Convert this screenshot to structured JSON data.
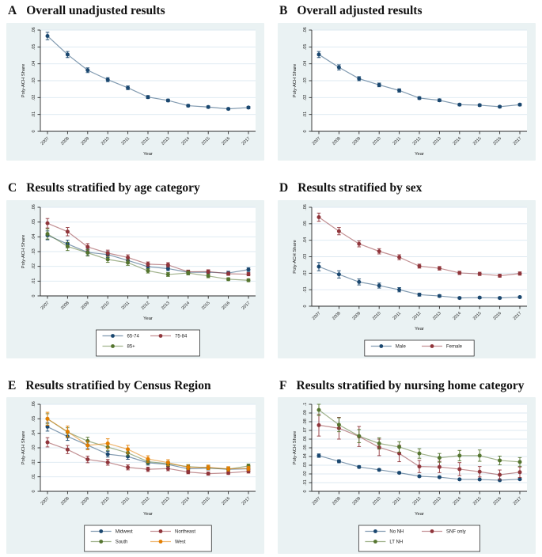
{
  "figure": {
    "xlabel": "Year",
    "ylabel": "Poly-ACH Share",
    "years": [
      2007,
      2008,
      2009,
      2010,
      2011,
      2012,
      2013,
      2014,
      2015,
      2016,
      2017
    ]
  },
  "colors": {
    "navy": "#1A476F",
    "maroon": "#90353B",
    "forest": "#55752F",
    "orange": "#E37E00",
    "plot_bg": "#ffffff",
    "region_bg": "#eaf2f3",
    "gridline": "#dce8f1",
    "axis": "#2b2b2b",
    "text": "#1a1a1a"
  },
  "panels": [
    {
      "letter": "A",
      "title": "Overall unadjusted results",
      "chart_data": {
        "type": "line",
        "x": [
          2007,
          2008,
          2009,
          2010,
          2011,
          2012,
          2013,
          2014,
          2015,
          2016,
          2017
        ],
        "xlabel": "Year",
        "ylabel": "Poly-ACH Share",
        "ylim": [
          0,
          0.06
        ],
        "yticks": [
          0,
          0.01,
          0.02,
          0.03,
          0.04,
          0.05,
          0.06
        ],
        "grid": true,
        "legend": false,
        "series": [
          {
            "name": "Overall unadjusted",
            "color": "navy",
            "values": [
              0.0565,
              0.0455,
              0.0362,
              0.0306,
              0.0258,
              0.0203,
              0.0183,
              0.0152,
              0.0144,
              0.0133,
              0.0141
            ],
            "err": [
              0.0022,
              0.0018,
              0.0014,
              0.0012,
              0.0011,
              0.0009,
              0.0008,
              0.0007,
              0.0007,
              0.0006,
              0.0007
            ]
          }
        ]
      }
    },
    {
      "letter": "B",
      "title": "Overall adjusted results",
      "chart_data": {
        "type": "line",
        "x": [
          2007,
          2008,
          2009,
          2010,
          2011,
          2012,
          2013,
          2014,
          2015,
          2016,
          2017
        ],
        "xlabel": "Year",
        "ylabel": "Poly-ACH Share",
        "ylim": [
          0,
          0.06
        ],
        "yticks": [
          0,
          0.01,
          0.02,
          0.03,
          0.04,
          0.05,
          0.06
        ],
        "grid": true,
        "legend": false,
        "series": [
          {
            "name": "Overall adjusted",
            "color": "navy",
            "values": [
              0.0455,
              0.0379,
              0.0312,
              0.0275,
              0.0242,
              0.0197,
              0.0184,
              0.0158,
              0.0155,
              0.0146,
              0.0158
            ],
            "err": [
              0.0018,
              0.0015,
              0.0012,
              0.0011,
              0.001,
              0.0008,
              0.0008,
              0.0007,
              0.0007,
              0.0006,
              0.0007
            ]
          }
        ]
      }
    },
    {
      "letter": "C",
      "title": "Results stratified by age category",
      "chart_data": {
        "type": "line",
        "x": [
          2007,
          2008,
          2009,
          2010,
          2011,
          2012,
          2013,
          2014,
          2015,
          2016,
          2017
        ],
        "xlabel": "Year",
        "ylabel": "Poly-ACH Share",
        "ylim": [
          0,
          0.06
        ],
        "yticks": [
          0,
          0.01,
          0.02,
          0.03,
          0.04,
          0.05,
          0.06
        ],
        "grid": true,
        "legend": true,
        "series": [
          {
            "name": "65-74",
            "color": "navy",
            "values": [
              0.041,
              0.0352,
              0.0295,
              0.028,
              0.024,
              0.0198,
              0.0185,
              0.016,
              0.016,
              0.0155,
              0.0178
            ],
            "err": [
              0.003,
              0.0026,
              0.0022,
              0.002,
              0.0018,
              0.0015,
              0.0014,
              0.0012,
              0.0012,
              0.0012,
              0.0013
            ]
          },
          {
            "name": "75-84",
            "color": "maroon",
            "values": [
              0.0492,
              0.0435,
              0.0332,
              0.029,
              0.026,
              0.0215,
              0.021,
              0.0163,
              0.0165,
              0.015,
              0.0147
            ],
            "err": [
              0.0032,
              0.0028,
              0.0022,
              0.002,
              0.0018,
              0.0015,
              0.0015,
              0.0012,
              0.0012,
              0.0011,
              0.0011
            ]
          },
          {
            "name": "85+",
            "color": "forest",
            "values": [
              0.042,
              0.0335,
              0.0292,
              0.0247,
              0.0225,
              0.017,
              0.0145,
              0.0155,
              0.0135,
              0.0113,
              0.0106
            ],
            "err": [
              0.0035,
              0.0028,
              0.0022,
              0.002,
              0.0018,
              0.0015,
              0.0013,
              0.0013,
              0.0012,
              0.001,
              0.001
            ]
          }
        ]
      }
    },
    {
      "letter": "D",
      "title": "Results stratified by sex",
      "chart_data": {
        "type": "line",
        "x": [
          2007,
          2008,
          2009,
          2010,
          2011,
          2012,
          2013,
          2014,
          2015,
          2016,
          2017
        ],
        "xlabel": "Year",
        "ylabel": "Poly-ACH Share",
        "ylim": [
          0,
          0.06
        ],
        "yticks": [
          0,
          0.01,
          0.02,
          0.03,
          0.04,
          0.05,
          0.06
        ],
        "grid": true,
        "legend": true,
        "series": [
          {
            "name": "Male",
            "color": "navy",
            "values": [
              0.024,
              0.0193,
              0.0147,
              0.0125,
              0.01,
              0.007,
              0.0062,
              0.005,
              0.0052,
              0.005,
              0.0055
            ],
            "err": [
              0.0025,
              0.0022,
              0.0018,
              0.0015,
              0.0013,
              0.0009,
              0.0008,
              0.0006,
              0.0006,
              0.0006,
              0.0006
            ]
          },
          {
            "name": "Female",
            "color": "maroon",
            "values": [
              0.054,
              0.0455,
              0.0378,
              0.0333,
              0.0297,
              0.0243,
              0.023,
              0.0202,
              0.0196,
              0.0185,
              0.0198
            ],
            "err": [
              0.0025,
              0.0022,
              0.0018,
              0.0016,
              0.0015,
              0.0012,
              0.0011,
              0.001,
              0.001,
              0.0009,
              0.001
            ]
          }
        ]
      }
    },
    {
      "letter": "E",
      "title": "Results stratified by Census Region",
      "chart_data": {
        "type": "line",
        "x": [
          2007,
          2008,
          2009,
          2010,
          2011,
          2012,
          2013,
          2014,
          2015,
          2016,
          2017
        ],
        "xlabel": "Year",
        "ylabel": "Poly-ACH Share",
        "ylim": [
          0,
          0.06
        ],
        "yticks": [
          0,
          0.01,
          0.02,
          0.03,
          0.04,
          0.05,
          0.06
        ],
        "grid": true,
        "legend": true,
        "series": [
          {
            "name": "Midwest",
            "color": "navy",
            "values": [
              0.0445,
              0.0378,
              0.0318,
              0.0256,
              0.024,
              0.0197,
              0.0185,
              0.0155,
              0.016,
              0.0152,
              0.0155
            ],
            "err": [
              0.003,
              0.0027,
              0.0024,
              0.002,
              0.0019,
              0.0016,
              0.0015,
              0.0013,
              0.0013,
              0.0012,
              0.0012
            ]
          },
          {
            "name": "Northeast",
            "color": "maroon",
            "values": [
              0.0338,
              0.0288,
              0.022,
              0.02,
              0.0165,
              0.0152,
              0.0157,
              0.0133,
              0.0122,
              0.0127,
              0.0138
            ],
            "err": [
              0.0032,
              0.0028,
              0.0023,
              0.002,
              0.0017,
              0.0015,
              0.0015,
              0.0012,
              0.0011,
              0.0011,
              0.0012
            ]
          },
          {
            "name": "South",
            "color": "forest",
            "values": [
              0.05,
              0.0408,
              0.0347,
              0.0305,
              0.0265,
              0.0205,
              0.019,
              0.017,
              0.0163,
              0.0153,
              0.0175
            ],
            "err": [
              0.0035,
              0.003,
              0.0026,
              0.0023,
              0.002,
              0.0017,
              0.0016,
              0.0014,
              0.0013,
              0.0012,
              0.0013
            ]
          },
          {
            "name": "West",
            "color": "orange",
            "values": [
              0.05,
              0.0412,
              0.0317,
              0.033,
              0.029,
              0.0223,
              0.0198,
              0.0165,
              0.0165,
              0.0155,
              0.0158
            ],
            "err": [
              0.0045,
              0.0038,
              0.003,
              0.0032,
              0.0027,
              0.0022,
              0.002,
              0.0016,
              0.0016,
              0.0015,
              0.0015
            ]
          }
        ]
      }
    },
    {
      "letter": "F",
      "title": "Results stratified by nursing home category",
      "chart_data": {
        "type": "line",
        "x": [
          2007,
          2008,
          2009,
          2010,
          2011,
          2012,
          2013,
          2014,
          2015,
          2016,
          2017
        ],
        "xlabel": "Year",
        "ylabel": "Poly-ACH Share",
        "ylim": [
          0,
          0.1
        ],
        "yticks": [
          0,
          0.01,
          0.02,
          0.03,
          0.04,
          0.05,
          0.06,
          0.07,
          0.08,
          0.09,
          0.1
        ],
        "grid": true,
        "legend": true,
        "series": [
          {
            "name": "No NH",
            "color": "navy",
            "values": [
              0.041,
              0.0345,
              0.028,
              0.0247,
              0.0213,
              0.0173,
              0.0163,
              0.0138,
              0.0136,
              0.0128,
              0.0139
            ],
            "err": [
              0.002,
              0.0017,
              0.0014,
              0.0013,
              0.0011,
              0.0009,
              0.0009,
              0.0007,
              0.0007,
              0.0007,
              0.0007
            ]
          },
          {
            "name": "SNF only",
            "color": "maroon",
            "values": [
              0.076,
              0.0725,
              0.063,
              0.0505,
              0.0435,
              0.0285,
              0.028,
              0.0255,
              0.0225,
              0.019,
              0.022
            ],
            "err": [
              0.0125,
              0.0125,
              0.0115,
              0.0095,
              0.0095,
              0.007,
              0.0065,
              0.0075,
              0.006,
              0.0055,
              0.006
            ]
          },
          {
            "name": "LT NH",
            "color": "forest",
            "values": [
              0.0935,
              0.0765,
              0.0635,
              0.055,
              0.051,
              0.0435,
              0.0385,
              0.041,
              0.041,
              0.0355,
              0.0338
            ],
            "err": [
              0.0065,
              0.008,
              0.0075,
              0.0065,
              0.006,
              0.0055,
              0.005,
              0.006,
              0.0065,
              0.005,
              0.005
            ]
          }
        ]
      }
    }
  ]
}
